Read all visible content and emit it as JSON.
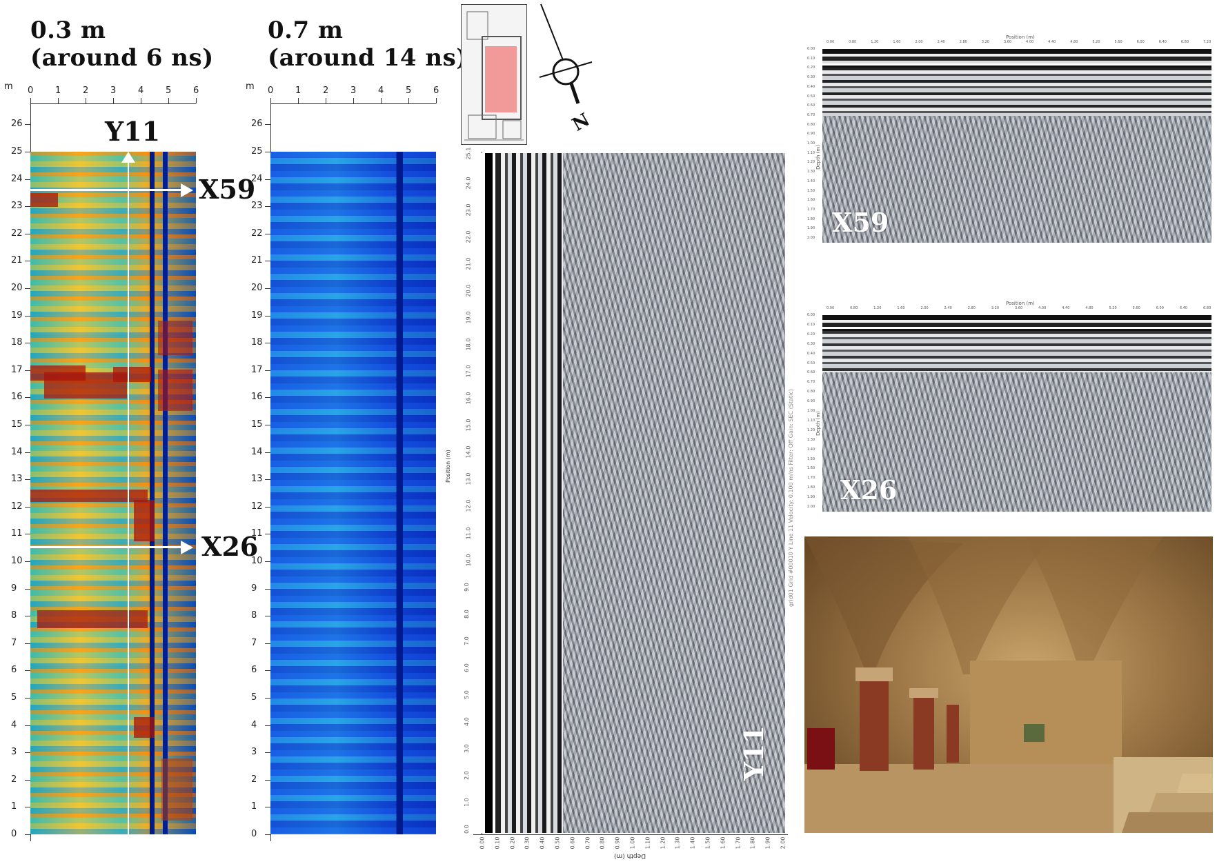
{
  "slices": [
    {
      "depth_label": "0.3 m",
      "time_label": "(around 6 ns)"
    },
    {
      "depth_label": "0.7 m",
      "time_label": "(around 14 ns)"
    }
  ],
  "ruler": {
    "unit": "m",
    "x_ticks": [
      "0",
      "1",
      "2",
      "3",
      "4",
      "5",
      "6"
    ],
    "y_ticks": [
      "26",
      "25",
      "24",
      "23",
      "22",
      "21",
      "20",
      "19",
      "18",
      "17",
      "16",
      "15",
      "14",
      "13",
      "12",
      "11",
      "10",
      "9",
      "8",
      "7",
      "6",
      "5",
      "4",
      "3",
      "2",
      "1",
      "0"
    ]
  },
  "profile_labels": {
    "y11": "Y11",
    "x59": "X59",
    "x26": "X26"
  },
  "north_label": "N",
  "y11_section": {
    "position_axis": "Position (m)",
    "position_ticks": [
      "25.1",
      "24.0",
      "23.0",
      "22.0",
      "21.0",
      "20.0",
      "19.0",
      "18.0",
      "17.0",
      "16.0",
      "15.0",
      "14.0",
      "13.0",
      "12.0",
      "11.0",
      "10.0",
      "9.0",
      "8.0",
      "7.0",
      "6.0",
      "5.0",
      "4.0",
      "3.0",
      "2.0",
      "1.0",
      "0.0"
    ],
    "depth_axis": "Depth (m)",
    "depth_ticks": [
      "0.00",
      "0.10",
      "0.20",
      "0.30",
      "0.40",
      "0.50",
      "0.60",
      "0.70",
      "0.80",
      "0.90",
      "1.00",
      "1.10",
      "1.20",
      "1.30",
      "1.40",
      "1.50",
      "1.60",
      "1.70",
      "1.80",
      "1.90",
      "2.00"
    ],
    "side_caption": "grid01 Grid #00010 Y Line 11   Velocity: 0.100 m/ns   Filter: Off   Gain: SEC (Static)"
  },
  "x59_section": {
    "position_axis": "Position (m)",
    "position_ticks": [
      "0.00",
      "0.80",
      "1.20",
      "1.60",
      "2.00",
      "2.40",
      "2.80",
      "3.20",
      "3.60",
      "4.00",
      "4.40",
      "4.80",
      "5.20",
      "5.60",
      "6.00",
      "6.40",
      "6.80",
      "7.20"
    ],
    "depth_axis": "Depth (m)",
    "depth_ticks": [
      "0.00",
      "0.10",
      "0.20",
      "0.30",
      "0.40",
      "0.50",
      "0.60",
      "0.70",
      "0.80",
      "0.90",
      "1.00",
      "1.10",
      "1.20",
      "1.30",
      "1.40",
      "1.50",
      "1.60",
      "1.70",
      "1.80",
      "1.90",
      "2.00"
    ]
  },
  "x26_section": {
    "position_axis": "Position (m)",
    "position_ticks": [
      "0.00",
      "0.80",
      "1.20",
      "1.60",
      "2.00",
      "2.40",
      "2.80",
      "3.20",
      "3.60",
      "4.00",
      "4.40",
      "4.80",
      "5.20",
      "5.60",
      "6.00",
      "6.40",
      "6.80"
    ],
    "depth_axis": "Depth (m)",
    "depth_ticks": [
      "0.00",
      "0.10",
      "0.20",
      "0.30",
      "0.40",
      "0.50",
      "0.60",
      "0.70",
      "0.80",
      "0.90",
      "1.00",
      "1.10",
      "1.20",
      "1.30",
      "1.40",
      "1.50",
      "1.60",
      "1.70",
      "1.80",
      "1.90",
      "2.00"
    ]
  },
  "colors": {
    "hot": "#a8140a",
    "cold": "#001a8c",
    "plan_highlight": "#f29a9a"
  }
}
